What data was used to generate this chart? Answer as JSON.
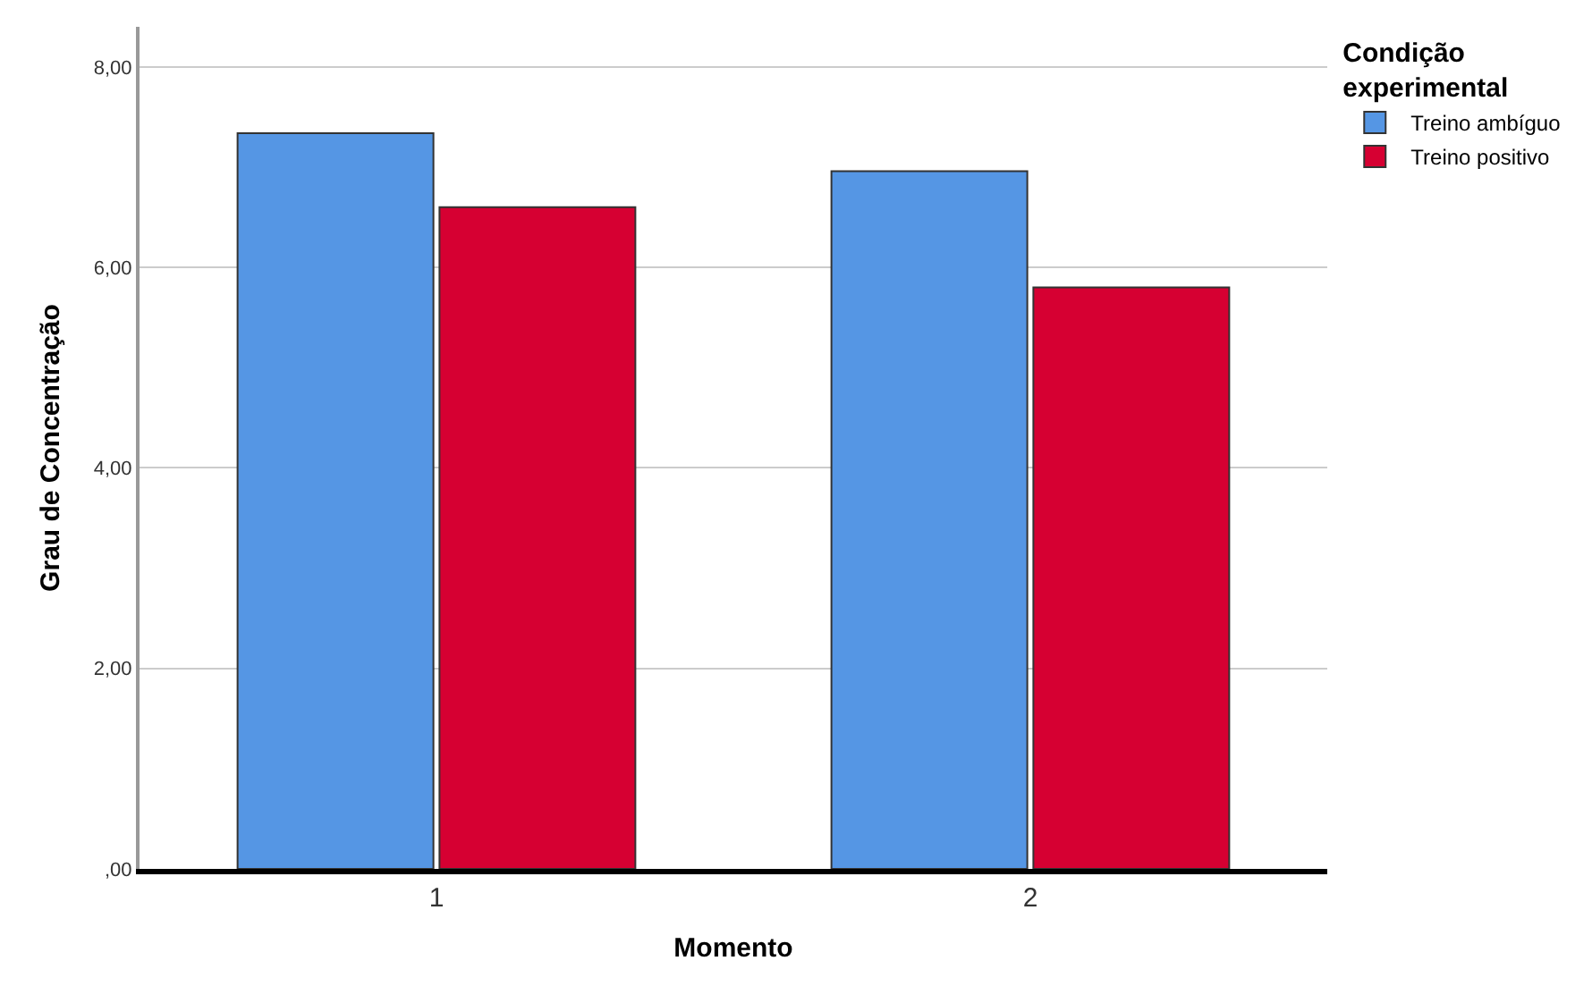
{
  "chart_data": {
    "type": "bar",
    "xlabel": "Momento",
    "ylabel": "Grau de Concentração",
    "legend_title": "Condição experimental",
    "categories": [
      "1",
      "2"
    ],
    "series": [
      {
        "name": "Treino ambíguo",
        "color": "#5596e4",
        "values": [
          7.34,
          6.96
        ]
      },
      {
        "name": "Treino positivo",
        "color": "#d60032",
        "values": [
          6.6,
          5.8
        ]
      }
    ],
    "ylim": [
      0,
      8.4
    ],
    "yticks": [
      {
        "value": 0,
        "label": ",00"
      },
      {
        "value": 2,
        "label": "2,00"
      },
      {
        "value": 4,
        "label": "4,00"
      },
      {
        "value": 6,
        "label": "6,00"
      },
      {
        "value": 8,
        "label": "8,00"
      }
    ],
    "grid": "y",
    "legend": "top right"
  }
}
